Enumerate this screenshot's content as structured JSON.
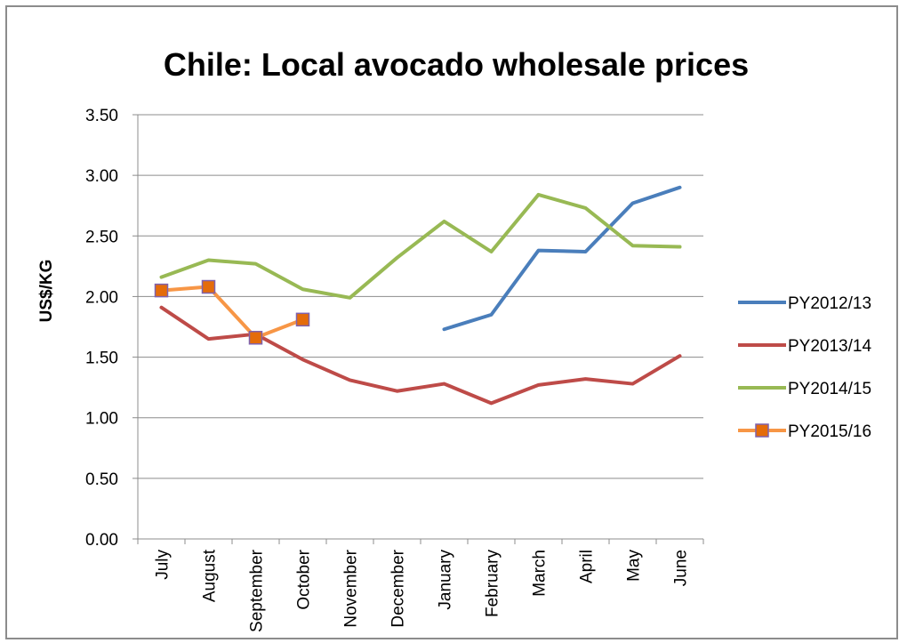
{
  "chart_data": {
    "type": "line",
    "title": "Chile: Local avocado wholesale prices",
    "xlabel": "",
    "ylabel": "US$/KG",
    "ylim": [
      0,
      3.5
    ],
    "y_ticks": [
      "0.00",
      "0.50",
      "1.00",
      "1.50",
      "2.00",
      "2.50",
      "3.00",
      "3.50"
    ],
    "grid": "horizontal",
    "legend_position": "right",
    "categories": [
      "July",
      "August",
      "September",
      "October",
      "November",
      "December",
      "January",
      "February",
      "March",
      "April",
      "May",
      "June"
    ],
    "series": [
      {
        "name": "PY2012/13",
        "color": "#4a7ebb",
        "marker": "none",
        "values": [
          null,
          null,
          null,
          null,
          null,
          null,
          1.73,
          1.85,
          2.38,
          2.37,
          2.77,
          2.9
        ]
      },
      {
        "name": "PY2013/14",
        "color": "#be4b48",
        "marker": "none",
        "values": [
          1.91,
          1.65,
          1.69,
          1.48,
          1.31,
          1.22,
          1.28,
          1.12,
          1.27,
          1.32,
          1.28,
          1.51
        ]
      },
      {
        "name": "PY2014/15",
        "color": "#98b954",
        "marker": "none",
        "values": [
          2.16,
          2.3,
          2.27,
          2.06,
          1.99,
          2.32,
          2.62,
          2.37,
          2.84,
          2.73,
          2.42,
          2.41
        ]
      },
      {
        "name": "PY2015/16",
        "color": "#f79646",
        "marker": "square",
        "marker_fill": "#e46c0a",
        "marker_stroke": "#7f62ae",
        "values": [
          2.05,
          2.08,
          1.66,
          1.81,
          null,
          null,
          null,
          null,
          null,
          null,
          null,
          null
        ]
      }
    ]
  }
}
